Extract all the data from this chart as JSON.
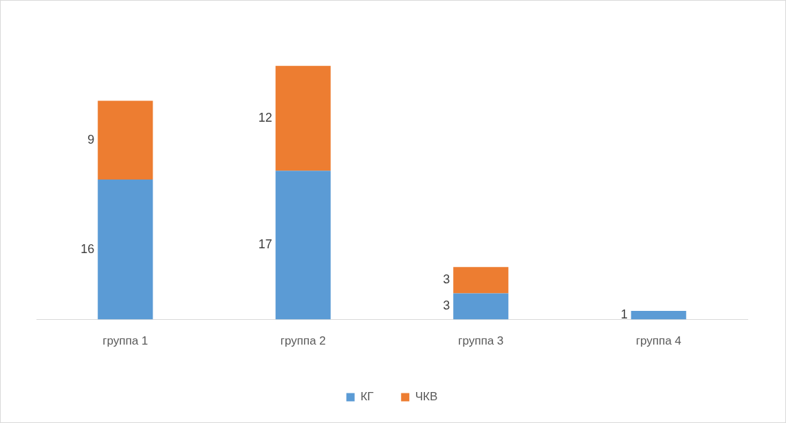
{
  "chart_data": {
    "type": "bar",
    "stacked": true,
    "data_labels": true,
    "legend": "bottom",
    "grid": false,
    "categories": [
      "группа 1",
      "группа 2",
      "группа 3",
      "группа 4"
    ],
    "series": [
      {
        "name": "КГ",
        "color": "#5b9bd5",
        "values": [
          16,
          17,
          3,
          1
        ]
      },
      {
        "name": "ЧКВ",
        "color": "#ed7d31",
        "values": [
          9,
          12,
          3,
          null
        ]
      }
    ]
  }
}
